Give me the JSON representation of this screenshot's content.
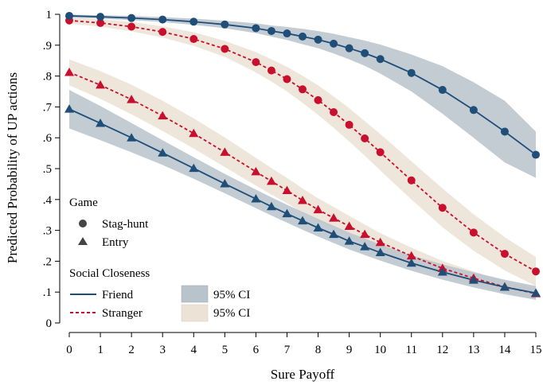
{
  "chart_data": {
    "type": "line",
    "xlabel": "Sure Payoff",
    "ylabel": "Predicted Probability of UP actions",
    "xlim": [
      0,
      15
    ],
    "ylim": [
      0,
      1
    ],
    "x_ticks": [
      "0",
      "1",
      "2",
      "3",
      "4",
      "5",
      "6",
      "7",
      "8",
      "9",
      "10",
      "11",
      "12",
      "13",
      "14",
      "15"
    ],
    "y_ticks": [
      "0",
      ".1",
      ".2",
      ".3",
      ".4",
      ".5",
      ".6",
      ".7",
      ".8",
      ".9",
      "1"
    ],
    "grid": false,
    "legend": {
      "position": "bottom-left inside plot",
      "game_title": "Game",
      "game_items": [
        {
          "marker": "circle",
          "label": "Stag-hunt"
        },
        {
          "marker": "triangle",
          "label": "Entry"
        }
      ],
      "closeness_title": "Social Closeness",
      "closeness_items": [
        {
          "style": "solid",
          "label": "Friend",
          "ci_label": "95% CI"
        },
        {
          "style": "dashed",
          "label": "Stranger",
          "ci_label": "95% CI"
        }
      ]
    },
    "colors": {
      "friend": "#1f4e79",
      "stranger": "#c8102e",
      "friend_ci": "#b9c3cb",
      "stranger_ci": "#ece3d6"
    },
    "x": [
      0,
      1,
      2,
      3,
      4,
      5,
      6,
      6.5,
      7,
      7.5,
      8,
      8.5,
      9,
      9.5,
      10,
      11,
      12,
      13,
      14,
      15
    ],
    "series": [
      {
        "name": "Friend",
        "game": "Stag-hunt",
        "style": "solid",
        "marker": "circle",
        "values": [
          0.995,
          0.992,
          0.988,
          0.983,
          0.976,
          0.967,
          0.955,
          0.946,
          0.938,
          0.928,
          0.918,
          0.905,
          0.89,
          0.874,
          0.855,
          0.81,
          0.755,
          0.69,
          0.62,
          0.545
        ],
        "ci_lower": [
          0.99,
          0.986,
          0.981,
          0.975,
          0.966,
          0.955,
          0.939,
          0.928,
          0.917,
          0.903,
          0.89,
          0.873,
          0.854,
          0.833,
          0.808,
          0.75,
          0.678,
          0.6,
          0.52,
          0.47
        ],
        "ci_upper": [
          0.999,
          0.997,
          0.995,
          0.991,
          0.986,
          0.979,
          0.971,
          0.964,
          0.959,
          0.953,
          0.946,
          0.937,
          0.926,
          0.915,
          0.902,
          0.87,
          0.832,
          0.78,
          0.72,
          0.62
        ]
      },
      {
        "name": "Stranger",
        "game": "Stag-hunt",
        "style": "dashed",
        "marker": "circle",
        "values": [
          0.98,
          0.972,
          0.96,
          0.943,
          0.92,
          0.888,
          0.845,
          0.818,
          0.79,
          0.757,
          0.722,
          0.683,
          0.642,
          0.598,
          0.553,
          0.462,
          0.373,
          0.293,
          0.224,
          0.167
        ],
        "ci_lower": [
          0.97,
          0.96,
          0.945,
          0.925,
          0.898,
          0.862,
          0.812,
          0.782,
          0.75,
          0.713,
          0.674,
          0.632,
          0.588,
          0.542,
          0.494,
          0.4,
          0.31,
          0.234,
          0.17,
          0.12
        ],
        "ci_upper": [
          0.99,
          0.984,
          0.975,
          0.961,
          0.942,
          0.914,
          0.878,
          0.854,
          0.83,
          0.801,
          0.77,
          0.734,
          0.696,
          0.654,
          0.612,
          0.524,
          0.436,
          0.352,
          0.278,
          0.214
        ]
      },
      {
        "name": "Friend",
        "game": "Entry",
        "style": "solid",
        "marker": "triangle",
        "values": [
          0.693,
          0.647,
          0.6,
          0.551,
          0.501,
          0.451,
          0.402,
          0.377,
          0.354,
          0.331,
          0.308,
          0.287,
          0.265,
          0.247,
          0.228,
          0.194,
          0.165,
          0.139,
          0.116,
          0.097
        ],
        "ci_lower": [
          0.63,
          0.592,
          0.553,
          0.512,
          0.467,
          0.42,
          0.372,
          0.348,
          0.325,
          0.302,
          0.28,
          0.259,
          0.238,
          0.22,
          0.202,
          0.169,
          0.14,
          0.115,
          0.093,
          0.075
        ],
        "ci_upper": [
          0.755,
          0.703,
          0.648,
          0.592,
          0.537,
          0.483,
          0.432,
          0.407,
          0.383,
          0.36,
          0.337,
          0.315,
          0.293,
          0.274,
          0.254,
          0.219,
          0.19,
          0.164,
          0.14,
          0.12
        ]
      },
      {
        "name": "Stranger",
        "game": "Entry",
        "style": "dashed",
        "marker": "triangle",
        "values": [
          0.812,
          0.771,
          0.724,
          0.671,
          0.614,
          0.553,
          0.49,
          0.459,
          0.429,
          0.397,
          0.367,
          0.34,
          0.313,
          0.287,
          0.261,
          0.217,
          0.177,
          0.145,
          0.117,
          0.095
        ],
        "ci_lower": [
          0.77,
          0.726,
          0.676,
          0.622,
          0.565,
          0.505,
          0.445,
          0.416,
          0.388,
          0.358,
          0.33,
          0.304,
          0.279,
          0.255,
          0.231,
          0.19,
          0.153,
          0.123,
          0.098,
          0.078
        ],
        "ci_upper": [
          0.854,
          0.816,
          0.772,
          0.72,
          0.663,
          0.601,
          0.535,
          0.502,
          0.47,
          0.436,
          0.404,
          0.376,
          0.347,
          0.319,
          0.291,
          0.244,
          0.201,
          0.167,
          0.136,
          0.112
        ]
      }
    ]
  }
}
